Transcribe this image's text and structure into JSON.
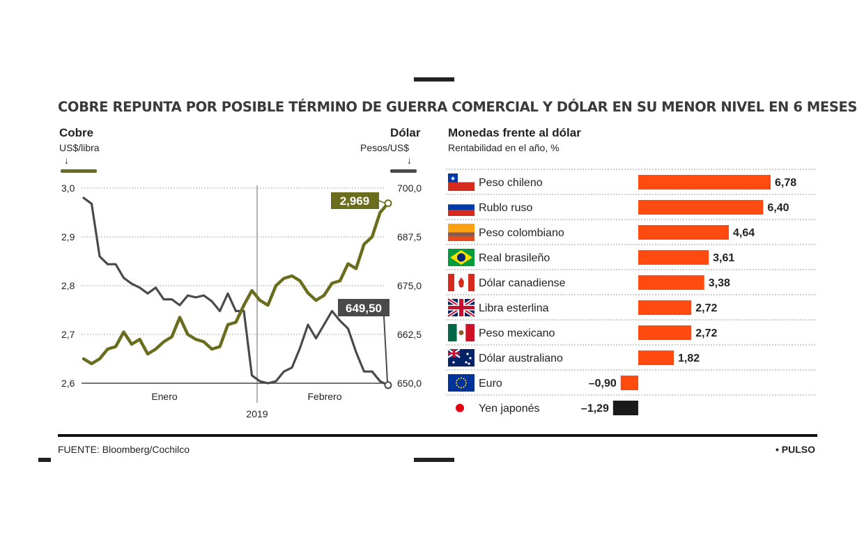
{
  "title": "COBRE REPUNTA POR POSIBLE TÉRMINO DE GUERRA COMERCIAL  Y DÓLAR EN SU MENOR NIVEL EN 6 MESES",
  "left_chart": {
    "left_axis_title": "Cobre",
    "left_axis_unit": "US$/libra",
    "right_axis_title": "Dólar",
    "right_axis_unit": "Pesos/US$",
    "arrow": "↓",
    "year_label": "2019",
    "copper_label": "2,969",
    "dollar_label": "649,50"
  },
  "right_chart": {
    "title": "Monedas frente al dólar",
    "subtitle": "Rentabilidad en el  año, %"
  },
  "chart_data": [
    {
      "type": "line",
      "x_labels": [
        "Enero",
        "Febrero"
      ],
      "y_left": {
        "title": "Cobre",
        "unit": "US$/libra",
        "ylim": [
          2.6,
          3.0
        ],
        "ticks": [
          "3,0",
          "2,9",
          "2,8",
          "2,7",
          "2,6"
        ]
      },
      "y_right": {
        "title": "Dólar",
        "unit": "Pesos/US$",
        "ylim": [
          650.0,
          700.0
        ],
        "ticks": [
          "700,0",
          "687,5",
          "675,0",
          "662,5",
          "650,0"
        ]
      },
      "colors": {
        "copper": "#6b6d1e",
        "dollar": "#4a4a4a"
      },
      "series": [
        {
          "axis": "left",
          "last_label": "2,969",
          "values": [
            2.65,
            2.64,
            2.65,
            2.67,
            2.675,
            2.705,
            2.68,
            2.69,
            2.66,
            2.67,
            2.685,
            2.695,
            2.735,
            2.7,
            2.69,
            2.685,
            2.67,
            2.675,
            2.72,
            2.725,
            2.76,
            2.79,
            2.77,
            2.76,
            2.8,
            2.815,
            2.82,
            2.81,
            2.785,
            2.77,
            2.78,
            2.805,
            2.81,
            2.845,
            2.835,
            2.885,
            2.9,
            2.95,
            2.969
          ]
        },
        {
          "axis": "right",
          "last_label": "649,50",
          "values": [
            697.5,
            696.0,
            682.5,
            680.5,
            680.5,
            677.0,
            675.5,
            674.5,
            673.0,
            674.5,
            671.5,
            671.5,
            670.0,
            672.5,
            672.0,
            672.5,
            671.0,
            668.5,
            673.0,
            668.5,
            668.5,
            652.0,
            650.5,
            650.0,
            650.5,
            653.0,
            654.0,
            659.0,
            665.0,
            661.5,
            665.0,
            668.5,
            666.0,
            664.0,
            658.0,
            653.0,
            653.0,
            650.5,
            649.5
          ]
        }
      ]
    },
    {
      "type": "bar",
      "title": "Monedas frente al dólar",
      "subtitle": "Rentabilidad en el  año, %",
      "categories": [
        "Peso chileno",
        "Rublo ruso",
        "Peso colombiano",
        "Real brasileño",
        "Dólar canadiense",
        "Libra esterlina",
        "Peso mexicano",
        "Dólar australiano",
        "Euro",
        "Yen japonés"
      ],
      "values": [
        6.78,
        6.4,
        4.64,
        3.61,
        3.38,
        2.72,
        2.72,
        1.82,
        -0.9,
        -1.29
      ],
      "value_labels": [
        "6,78",
        "6,40",
        "4,64",
        "3,61",
        "3,38",
        "2,72",
        "2,72",
        "1,82",
        "–0,90",
        "–1,29"
      ],
      "flags": [
        "chile-flag-icon",
        "russia-flag-icon",
        "colombia-flag-icon",
        "brazil-flag-icon",
        "canada-flag-icon",
        "uk-flag-icon",
        "mexico-flag-icon",
        "australia-flag-icon",
        "eu-flag-icon",
        "japan-flag-icon"
      ],
      "colors": {
        "positive": "#ff4a10",
        "euro": "#ff4a10",
        "yen": "#1a1a1a"
      }
    }
  ],
  "footer": {
    "source": "FUENTE: Bloomberg/Cochilco",
    "brand": "• PULSO"
  }
}
